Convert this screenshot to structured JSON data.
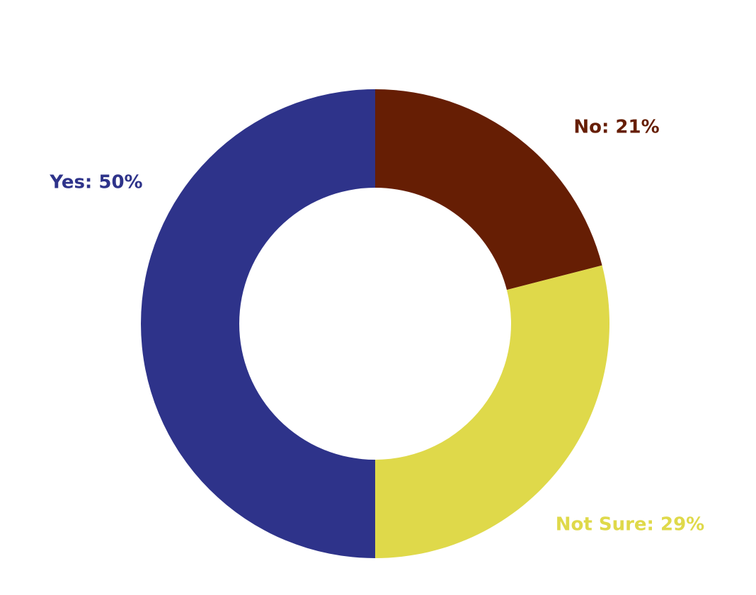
{
  "chart_data": {
    "type": "donut",
    "values": [
      21,
      29,
      50
    ],
    "value_labels": [
      "No: 21%",
      "Not Sure: 29%",
      "Yes: 50%"
    ],
    "colors": [
      "#661e04",
      "#dfd94a",
      "#2e338a"
    ]
  }
}
